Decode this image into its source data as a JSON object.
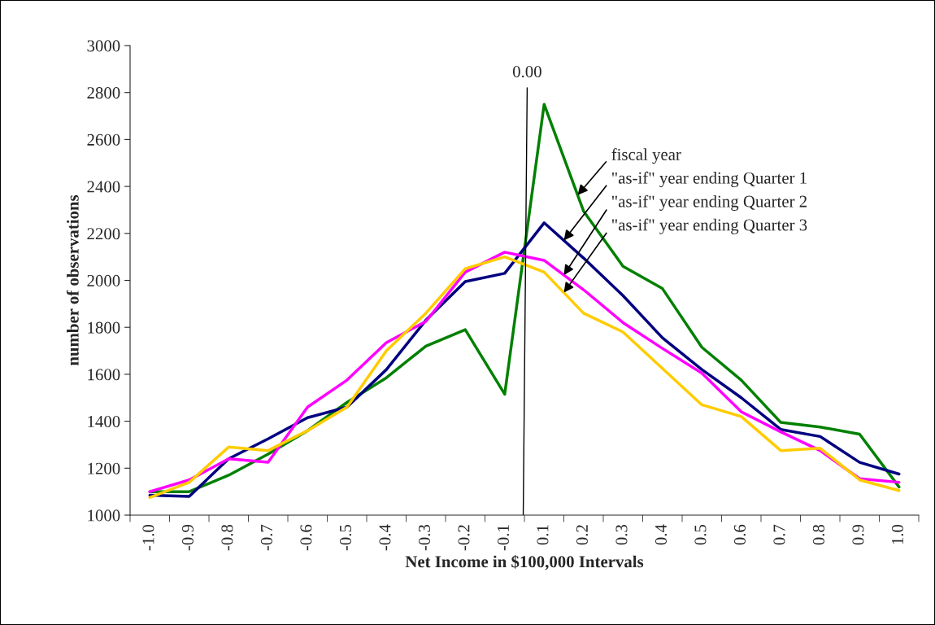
{
  "chart_data": {
    "type": "line",
    "xlabel": "Net Income in $100,000 Intervals",
    "ylabel": "number of observations",
    "categories": [
      "-1.0",
      "-0.9",
      "-0.8",
      "-0.7",
      "-0.6",
      "-0.5",
      "-0.4",
      "-0.3",
      "-0.2",
      "-0.1",
      "0.1",
      "0.2",
      "0.3",
      "0.4",
      "0.5",
      "0.6",
      "0.7",
      "0.8",
      "0.9",
      "1.0"
    ],
    "series": [
      {
        "name": "fiscal year",
        "color": "#008000",
        "values": [
          1100,
          1100,
          1170,
          1260,
          1360,
          1480,
          1585,
          1720,
          1790,
          1515,
          2750,
          2295,
          2060,
          1965,
          1715,
          1575,
          1395,
          1375,
          1345,
          1120
        ]
      },
      {
        "name": "\"as-if\" year ending Quarter 1",
        "color": "#000080",
        "values": [
          1085,
          1080,
          1240,
          1325,
          1415,
          1460,
          1620,
          1830,
          1995,
          2030,
          2245,
          2095,
          1935,
          1755,
          1620,
          1500,
          1365,
          1335,
          1225,
          1175
        ]
      },
      {
        "name": "\"as-if\" year ending Quarter 2",
        "color": "#ff00ff",
        "values": [
          1100,
          1150,
          1240,
          1225,
          1460,
          1575,
          1735,
          1825,
          2035,
          2120,
          2085,
          1960,
          1820,
          1710,
          1605,
          1440,
          1355,
          1275,
          1155,
          1140
        ]
      },
      {
        "name": "\"as-if\" year ending Quarter 3",
        "color": "#ffcc00",
        "values": [
          1075,
          1140,
          1290,
          1275,
          1360,
          1460,
          1700,
          1860,
          2050,
          2100,
          2035,
          1860,
          1780,
          1625,
          1470,
          1420,
          1275,
          1285,
          1150,
          1105
        ]
      }
    ],
    "ylim": [
      1000,
      3000
    ],
    "yticks": [
      1000,
      1200,
      1400,
      1600,
      1800,
      2000,
      2200,
      2400,
      2600,
      2800,
      3000
    ],
    "annotations": [
      "0.00"
    ],
    "grid": false,
    "legend": false,
    "marker": "none",
    "line_style": "solid"
  }
}
